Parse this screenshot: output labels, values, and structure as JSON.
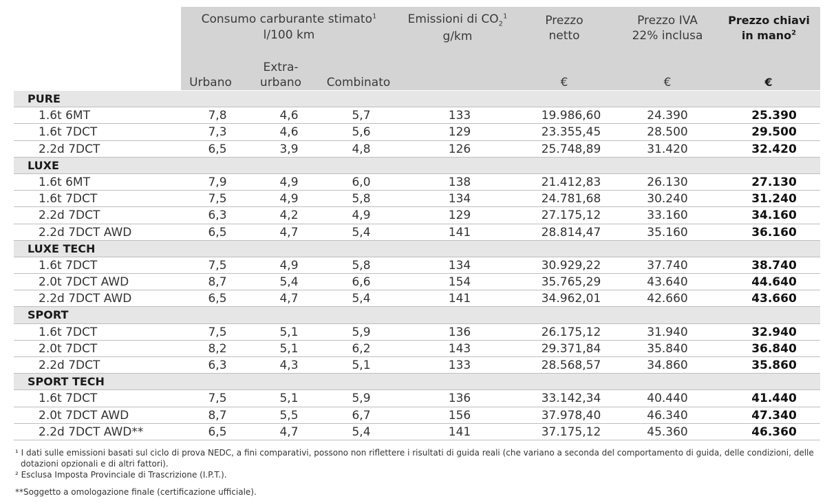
{
  "header": {
    "consumo_title": "Consumo carburante stimato",
    "consumo_sup": "1",
    "consumo_unit": "l/100 km",
    "urbano": "Urbano",
    "extra_line1": "Extra-",
    "extra_line2": "urbano",
    "combinato": "Combinato",
    "emissioni_title": "Emissioni di CO",
    "emissioni_sub": "2",
    "emissioni_sup": "1",
    "emissioni_unit": "g/km",
    "netto_line1": "Prezzo",
    "netto_line2": "netto",
    "netto_unit": "€",
    "iva_line1": "Prezzo IVA",
    "iva_line2": "22% inclusa",
    "iva_unit": "€",
    "chiavi_line1": "Prezzo chiavi",
    "chiavi_line2": "in mano",
    "chiavi_sup": "2",
    "chiavi_unit": "€"
  },
  "groups": [
    {
      "name": "PURE",
      "rows": [
        {
          "model": "1.6t 6MT",
          "urbano": "7,8",
          "extra": "4,6",
          "combinato": "5,7",
          "co2": "133",
          "netto": "19.986,60",
          "iva": "24.390",
          "chiavi": "25.390"
        },
        {
          "model": "1.6t 7DCT",
          "urbano": "7,3",
          "extra": "4,6",
          "combinato": "5,6",
          "co2": "129",
          "netto": "23.355,45",
          "iva": "28.500",
          "chiavi": "29.500"
        },
        {
          "model": "2.2d 7DCT",
          "urbano": "6,5",
          "extra": "3,9",
          "combinato": "4,8",
          "co2": "126",
          "netto": "25.748,89",
          "iva": "31.420",
          "chiavi": "32.420"
        }
      ]
    },
    {
      "name": "LUXE",
      "rows": [
        {
          "model": "1.6t 6MT",
          "urbano": "7,9",
          "extra": "4,9",
          "combinato": "6,0",
          "co2": "138",
          "netto": "21.412,83",
          "iva": "26.130",
          "chiavi": "27.130"
        },
        {
          "model": "1.6t 7DCT",
          "urbano": "7,5",
          "extra": "4,9",
          "combinato": "5,8",
          "co2": "134",
          "netto": "24.781,68",
          "iva": "30.240",
          "chiavi": "31.240"
        },
        {
          "model": "2.2d 7DCT",
          "urbano": "6,3",
          "extra": "4,2",
          "combinato": "4,9",
          "co2": "129",
          "netto": "27.175,12",
          "iva": "33.160",
          "chiavi": "34.160"
        },
        {
          "model": "2.2d 7DCT AWD",
          "urbano": "6,5",
          "extra": "4,7",
          "combinato": "5,4",
          "co2": "141",
          "netto": "28.814,47",
          "iva": "35.160",
          "chiavi": "36.160"
        }
      ]
    },
    {
      "name": "LUXE TECH",
      "rows": [
        {
          "model": "1.6t 7DCT",
          "urbano": "7,5",
          "extra": "4,9",
          "combinato": "5,8",
          "co2": "134",
          "netto": "30.929,22",
          "iva": "37.740",
          "chiavi": "38.740"
        },
        {
          "model": "2.0t 7DCT AWD",
          "urbano": "8,7",
          "extra": "5,4",
          "combinato": "6,6",
          "co2": "154",
          "netto": "35.765,29",
          "iva": "43.640",
          "chiavi": "44.640"
        },
        {
          "model": "2.2d 7DCT AWD",
          "urbano": "6,5",
          "extra": "4,7",
          "combinato": "5,4",
          "co2": "141",
          "netto": "34.962,01",
          "iva": "42.660",
          "chiavi": "43.660"
        }
      ]
    },
    {
      "name": "SPORT",
      "rows": [
        {
          "model": "1.6t 7DCT",
          "urbano": "7,5",
          "extra": "5,1",
          "combinato": "5,9",
          "co2": "136",
          "netto": "26.175,12",
          "iva": "31.940",
          "chiavi": "32.940"
        },
        {
          "model": "2.0t 7DCT",
          "urbano": "8,2",
          "extra": "5,1",
          "combinato": "6,2",
          "co2": "143",
          "netto": "29.371,84",
          "iva": "35.840",
          "chiavi": "36.840"
        },
        {
          "model": "2.2d 7DCT",
          "urbano": "6,3",
          "extra": "4,3",
          "combinato": "5,1",
          "co2": "133",
          "netto": "28.568,57",
          "iva": "34.860",
          "chiavi": "35.860"
        }
      ]
    },
    {
      "name": "SPORT TECH",
      "rows": [
        {
          "model": "1.6t 7DCT",
          "urbano": "7,5",
          "extra": "5,1",
          "combinato": "5,9",
          "co2": "136",
          "netto": "33.142,34",
          "iva": "40.440",
          "chiavi": "41.440"
        },
        {
          "model": "2.0t 7DCT AWD",
          "urbano": "8,7",
          "extra": "5,5",
          "combinato": "6,7",
          "co2": "156",
          "netto": "37.978,40",
          "iva": "46.340",
          "chiavi": "47.340"
        },
        {
          "model": "2.2d 7DCT AWD**",
          "urbano": "6,5",
          "extra": "4,7",
          "combinato": "5,4",
          "co2": "141",
          "netto": "37.175,12",
          "iva": "45.360",
          "chiavi": "46.360"
        }
      ]
    }
  ],
  "footnotes": {
    "fn1": "¹ I dati sulle emissioni basati sul ciclo di prova NEDC, a fini comparativi, possono non riflettere i risultati di guida reali (che variano a seconda del comportamento di guida, delle condizioni, delle dotazioni opzionali e di altri fattori).",
    "fn2": "² Esclusa Imposta Provinciale di Trascrizione (I.P.T.).",
    "fn3": "**Soggetto a omologazione finale (certificazione ufficiale)."
  }
}
